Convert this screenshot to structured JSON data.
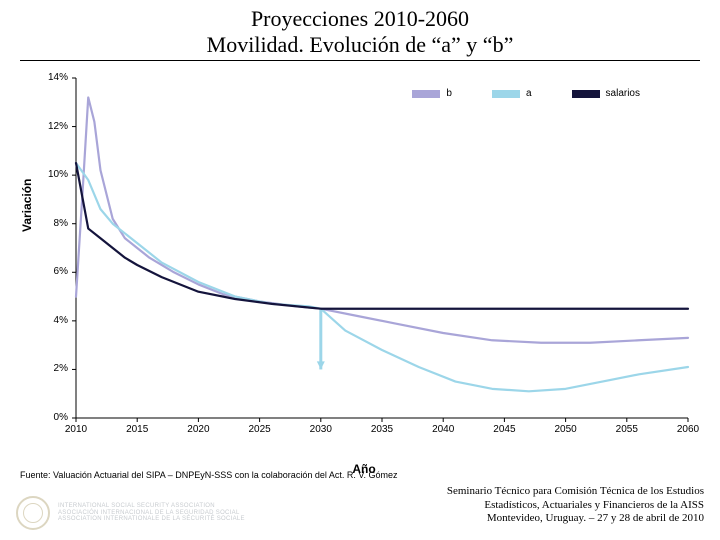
{
  "title_line1": "Proyecciones 2010-2060",
  "title_line2": "Movilidad. Evolución de “a” y “b”",
  "chart": {
    "type": "line",
    "y_label": "Variación",
    "x_label": "Año",
    "y_ticks": [
      "0%",
      "2%",
      "4%",
      "6%",
      "8%",
      "10%",
      "12%",
      "14%"
    ],
    "x_ticks": [
      "2010",
      "2015",
      "2020",
      "2025",
      "2030",
      "2035",
      "2040",
      "2045",
      "2050",
      "2055",
      "2060"
    ],
    "ylim": [
      0,
      14
    ],
    "xlim": [
      2010,
      2060
    ],
    "grid_color": "#bfbfbf",
    "background_color": "#ffffff",
    "axis_color": "#000000",
    "marker_drop": {
      "x": 2030,
      "y_from": 4.5,
      "y_to": 2.0,
      "color": "#9cd6e9"
    },
    "series": [
      {
        "name": "b",
        "color": "#a9a5d8",
        "width": 2.2,
        "points": [
          [
            2010,
            5.0
          ],
          [
            2010.5,
            9.0
          ],
          [
            2011,
            13.2
          ],
          [
            2011.5,
            12.2
          ],
          [
            2012,
            10.2
          ],
          [
            2013,
            8.2
          ],
          [
            2014,
            7.4
          ],
          [
            2015,
            7.0
          ],
          [
            2016,
            6.6
          ],
          [
            2018,
            6.0
          ],
          [
            2020,
            5.5
          ],
          [
            2022,
            5.1
          ],
          [
            2025,
            4.8
          ],
          [
            2028,
            4.6
          ],
          [
            2030,
            4.5
          ],
          [
            2033,
            4.2
          ],
          [
            2036,
            3.9
          ],
          [
            2040,
            3.5
          ],
          [
            2044,
            3.2
          ],
          [
            2048,
            3.1
          ],
          [
            2052,
            3.1
          ],
          [
            2056,
            3.2
          ],
          [
            2060,
            3.3
          ]
        ]
      },
      {
        "name": "a",
        "color": "#9cd6e9",
        "width": 2.2,
        "points": [
          [
            2010,
            10.5
          ],
          [
            2011,
            9.8
          ],
          [
            2012,
            8.6
          ],
          [
            2013,
            8.0
          ],
          [
            2014,
            7.6
          ],
          [
            2015,
            7.2
          ],
          [
            2017,
            6.4
          ],
          [
            2020,
            5.6
          ],
          [
            2023,
            5.0
          ],
          [
            2026,
            4.7
          ],
          [
            2029,
            4.6
          ],
          [
            2030,
            4.5
          ],
          [
            2032,
            3.6
          ],
          [
            2035,
            2.8
          ],
          [
            2038,
            2.1
          ],
          [
            2041,
            1.5
          ],
          [
            2044,
            1.2
          ],
          [
            2047,
            1.1
          ],
          [
            2050,
            1.2
          ],
          [
            2053,
            1.5
          ],
          [
            2056,
            1.8
          ],
          [
            2060,
            2.1
          ]
        ]
      },
      {
        "name": "salarios",
        "color": "#14143c",
        "width": 2.2,
        "points": [
          [
            2010,
            10.5
          ],
          [
            2011,
            7.8
          ],
          [
            2012,
            7.4
          ],
          [
            2013,
            7.0
          ],
          [
            2014,
            6.6
          ],
          [
            2015,
            6.3
          ],
          [
            2017,
            5.8
          ],
          [
            2020,
            5.2
          ],
          [
            2023,
            4.9
          ],
          [
            2026,
            4.7
          ],
          [
            2029,
            4.55
          ],
          [
            2030,
            4.5
          ],
          [
            2035,
            4.5
          ],
          [
            2040,
            4.5
          ],
          [
            2045,
            4.5
          ],
          [
            2050,
            4.5
          ],
          [
            2055,
            4.5
          ],
          [
            2060,
            4.5
          ]
        ]
      }
    ]
  },
  "fuente": "Fuente: Valuación Actuarial del SIPA – DNPEyN-SSS con la colaboración del Act. R. V. Gómez",
  "footer_line1": "Seminario Técnico para Comisión Técnica de los Estudios",
  "footer_line2": "Estadísticos, Actuariales y Financieros de la AISS",
  "footer_line3": "Montevideo, Uruguay. – 27 y 28 de abril de 2010",
  "logo_text": "INTERNATIONAL SOCIAL SECURITY ASSOCIATION\nASOCIACIÓN INTERNACIONAL DE LA SEGURIDAD SOCIAL\nASSOCIATION INTERNATIONALE DE LA SÉCURITÉ SOCIALE"
}
